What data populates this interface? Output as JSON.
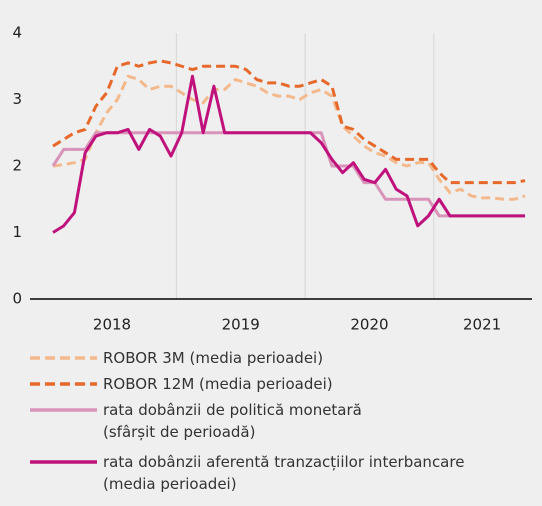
{
  "chart_data": {
    "type": "line",
    "categories": [
      null,
      null,
      null,
      null,
      null,
      null,
      null,
      null,
      null,
      null,
      null,
      null,
      null,
      null,
      null,
      null,
      null,
      null,
      null,
      null,
      null,
      null,
      null,
      null,
      null,
      null,
      null,
      null,
      null,
      null,
      null,
      null,
      null,
      null,
      null,
      null,
      null,
      null,
      null,
      null,
      null,
      null,
      null,
      null,
      null
    ],
    "x_groups": [
      {
        "label": "2018",
        "count": 12
      },
      {
        "label": "2019",
        "count": 12
      },
      {
        "label": "2020",
        "count": 12
      },
      {
        "label": "2021",
        "count": 9
      }
    ],
    "ylim": [
      0,
      4
    ],
    "yticks": [
      0,
      1,
      2,
      3,
      4
    ],
    "grid": false,
    "series": [
      {
        "name": "ROBOR 3M (media perioadei)",
        "color": "#f3b98c",
        "dash": true,
        "values": [
          2.0,
          2.02,
          2.05,
          2.1,
          2.5,
          2.8,
          3.0,
          3.35,
          3.3,
          3.15,
          3.2,
          3.2,
          3.1,
          3.0,
          2.95,
          3.15,
          3.15,
          3.3,
          3.25,
          3.2,
          3.1,
          3.05,
          3.05,
          3.0,
          3.1,
          3.15,
          3.05,
          2.6,
          2.45,
          2.3,
          2.2,
          2.15,
          2.05,
          2.0,
          2.05,
          2.05,
          1.8,
          1.6,
          1.65,
          1.55,
          1.52,
          1.52,
          1.5,
          1.5,
          1.55
        ]
      },
      {
        "name": "ROBOR 12M (media perioadei)",
        "color": "#e6692b",
        "dash": true,
        "values": [
          2.3,
          2.4,
          2.5,
          2.55,
          2.9,
          3.1,
          3.5,
          3.55,
          3.5,
          3.55,
          3.58,
          3.55,
          3.5,
          3.45,
          3.5,
          3.5,
          3.5,
          3.5,
          3.45,
          3.3,
          3.25,
          3.25,
          3.2,
          3.2,
          3.25,
          3.3,
          3.2,
          2.6,
          2.55,
          2.4,
          2.3,
          2.2,
          2.1,
          2.1,
          2.1,
          2.1,
          1.9,
          1.75,
          1.75,
          1.75,
          1.75,
          1.75,
          1.75,
          1.75,
          1.78
        ]
      },
      {
        "name": "rata dobânzii de politică monetară\n(sfârșit de perioadă)",
        "color": "#d894b9",
        "dash": false,
        "values": [
          2.0,
          2.25,
          2.25,
          2.25,
          2.5,
          2.5,
          2.5,
          2.5,
          2.5,
          2.5,
          2.5,
          2.5,
          2.5,
          2.5,
          2.5,
          2.5,
          2.5,
          2.5,
          2.5,
          2.5,
          2.5,
          2.5,
          2.5,
          2.5,
          2.5,
          2.5,
          2.0,
          2.0,
          2.0,
          1.75,
          1.75,
          1.5,
          1.5,
          1.5,
          1.5,
          1.5,
          1.25,
          1.25,
          1.25,
          1.25,
          1.25,
          1.25,
          1.25,
          1.25,
          1.25
        ]
      },
      {
        "name": "rata dobânzii aferentă tranzacțiilor interbancare\n(media perioadei)",
        "color": "#c0127c",
        "dash": false,
        "values": [
          1.0,
          1.1,
          1.3,
          2.2,
          2.45,
          2.5,
          2.5,
          2.55,
          2.25,
          2.55,
          2.45,
          2.15,
          2.5,
          3.35,
          2.5,
          3.2,
          2.5,
          2.5,
          2.5,
          2.5,
          2.5,
          2.5,
          2.5,
          2.5,
          2.5,
          2.35,
          2.1,
          1.9,
          2.05,
          1.8,
          1.75,
          1.95,
          1.65,
          1.55,
          1.1,
          1.25,
          1.5,
          1.25,
          1.25,
          1.25,
          1.25,
          1.25,
          1.25,
          1.25,
          1.25
        ]
      }
    ]
  }
}
